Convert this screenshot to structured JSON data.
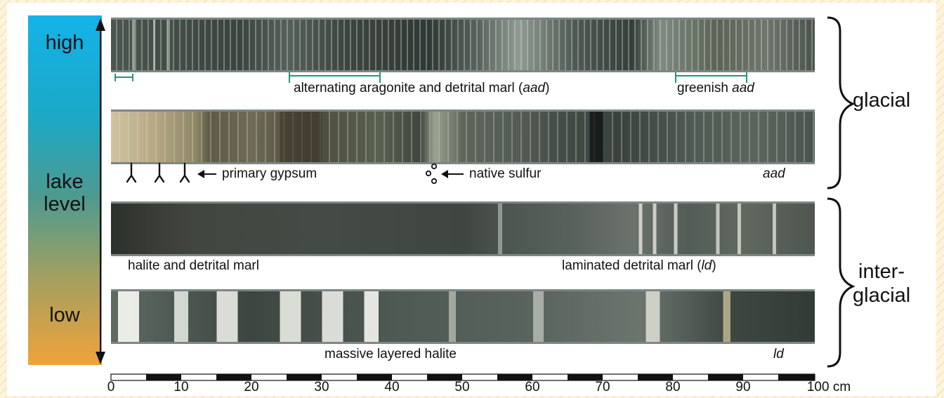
{
  "lake_level": {
    "high": "high",
    "lake": "lake",
    "level": "level",
    "low": "low"
  },
  "rows": {
    "row1": {
      "label_pre": "alternating aragonite and detrital marl (",
      "label_em": "aad",
      "label_post": ")",
      "greenish_pre": "greenish ",
      "greenish_em": "aad"
    },
    "row2": {
      "gypsum": "primary gypsum",
      "sulfur": "native sulfur",
      "aad": "aad"
    },
    "row3": {
      "left": "halite and detrital marl",
      "right_pre": "laminated detrital marl (",
      "right_em": "ld",
      "right_post": ")"
    },
    "row4": {
      "center": "massive layered halite",
      "right": "ld"
    }
  },
  "periods": {
    "glacial": "glacial",
    "inter_line1": "inter-",
    "inter_line2": "glacial"
  },
  "scale": {
    "ticks": [
      "0",
      "10",
      "20",
      "30",
      "40",
      "50",
      "60",
      "70",
      "80",
      "90",
      "100 cm"
    ]
  },
  "colors": {
    "gradient_top": "#14b3e8",
    "gradient_bottom": "#f1a23a",
    "bracket_green": "#1e9a72"
  }
}
